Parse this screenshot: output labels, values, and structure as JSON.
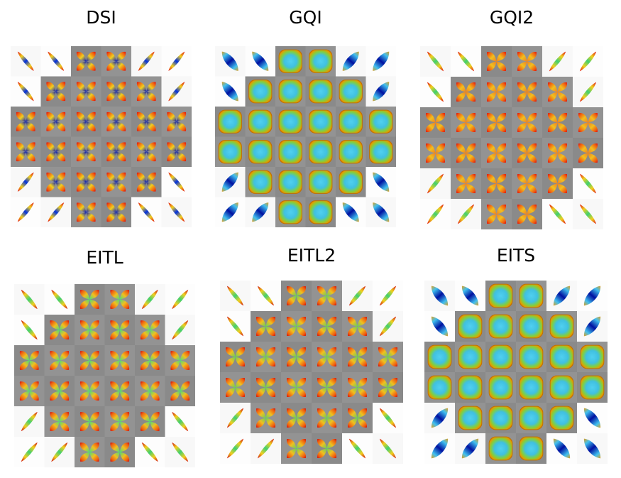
{
  "panels": [
    {
      "id": "dsi",
      "title": "DSI",
      "glyph": "cross",
      "colors": {
        "tip": "#e01010",
        "mid": "#f0d020",
        "center": "#0018c0"
      }
    },
    {
      "id": "gqi",
      "title": "GQI",
      "glyph": "blob",
      "colors": {
        "tip": "#e0a000",
        "mid": "#60d060",
        "center": "#40c8f0"
      }
    },
    {
      "id": "gqi2",
      "title": "GQI2",
      "glyph": "cross",
      "colors": {
        "tip": "#e01010",
        "mid": "#f0c020",
        "center": "#f08020"
      }
    },
    {
      "id": "eitl",
      "title": "EITL",
      "glyph": "cross",
      "colors": {
        "tip": "#d01010",
        "mid": "#f0c020",
        "center": "#40e080"
      }
    },
    {
      "id": "eitl2",
      "title": "EITL2",
      "glyph": "cross",
      "colors": {
        "tip": "#d01010",
        "mid": "#f0c020",
        "center": "#60d060"
      }
    },
    {
      "id": "eits",
      "title": "EITS",
      "glyph": "blob",
      "colors": {
        "tip": "#e0a000",
        "mid": "#60d060",
        "center": "#40c8f0"
      }
    }
  ],
  "grid": {
    "rows": 6,
    "cols": 6,
    "mask": [
      "..##..",
      ".####.",
      "######",
      "######",
      ".####.",
      "..##.."
    ],
    "corner_orientation": [
      [
        "d",
        "d",
        "",
        "",
        "u",
        "u"
      ],
      [
        "d",
        "",
        "",
        "",
        "",
        "u"
      ],
      [
        "",
        "",
        "",
        "",
        "",
        ""
      ],
      [
        "",
        "",
        "",
        "",
        "",
        ""
      ],
      [
        "u",
        "",
        "",
        "",
        "",
        "d"
      ],
      [
        "u",
        "u",
        "",
        "",
        "d",
        "d"
      ]
    ]
  }
}
